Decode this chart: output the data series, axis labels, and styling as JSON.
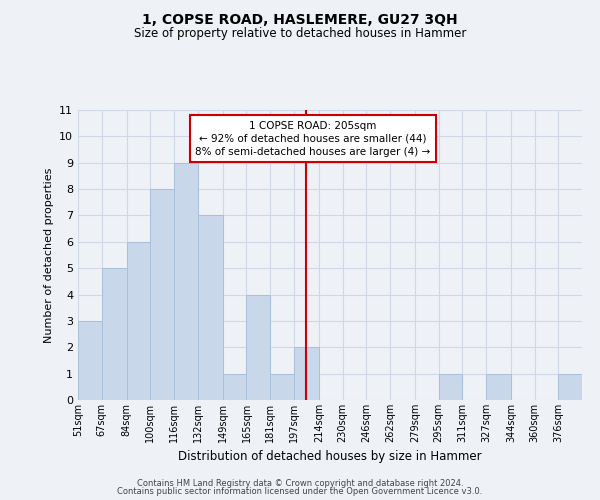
{
  "title": "1, COPSE ROAD, HASLEMERE, GU27 3QH",
  "subtitle": "Size of property relative to detached houses in Hammer",
  "xlabel": "Distribution of detached houses by size in Hammer",
  "ylabel": "Number of detached properties",
  "bin_labels": [
    "51sqm",
    "67sqm",
    "84sqm",
    "100sqm",
    "116sqm",
    "132sqm",
    "149sqm",
    "165sqm",
    "181sqm",
    "197sqm",
    "214sqm",
    "230sqm",
    "246sqm",
    "262sqm",
    "279sqm",
    "295sqm",
    "311sqm",
    "327sqm",
    "344sqm",
    "360sqm",
    "376sqm"
  ],
  "bin_edges": [
    51,
    67,
    84,
    100,
    116,
    132,
    149,
    165,
    181,
    197,
    214,
    230,
    246,
    262,
    279,
    295,
    311,
    327,
    344,
    360,
    376,
    392
  ],
  "counts": [
    3,
    5,
    6,
    8,
    9,
    7,
    1,
    4,
    1,
    2,
    0,
    0,
    0,
    0,
    0,
    1,
    0,
    1,
    0,
    0,
    1
  ],
  "bar_color": "#c8d8ea",
  "bar_edgecolor": "#a8c0d8",
  "reference_line_x": 205,
  "reference_line_color": "#cc0000",
  "annotation_line1": "1 COPSE ROAD: 205sqm",
  "annotation_line2": "← 92% of detached houses are smaller (44)",
  "annotation_line3": "8% of semi-detached houses are larger (4) →",
  "annotation_box_color": "#cc0000",
  "ylim": [
    0,
    11
  ],
  "yticks": [
    0,
    1,
    2,
    3,
    4,
    5,
    6,
    7,
    8,
    9,
    10,
    11
  ],
  "grid_color": "#d0d8e8",
  "background_color": "#eef2f7",
  "footer_line1": "Contains HM Land Registry data © Crown copyright and database right 2024.",
  "footer_line2": "Contains public sector information licensed under the Open Government Licence v3.0."
}
